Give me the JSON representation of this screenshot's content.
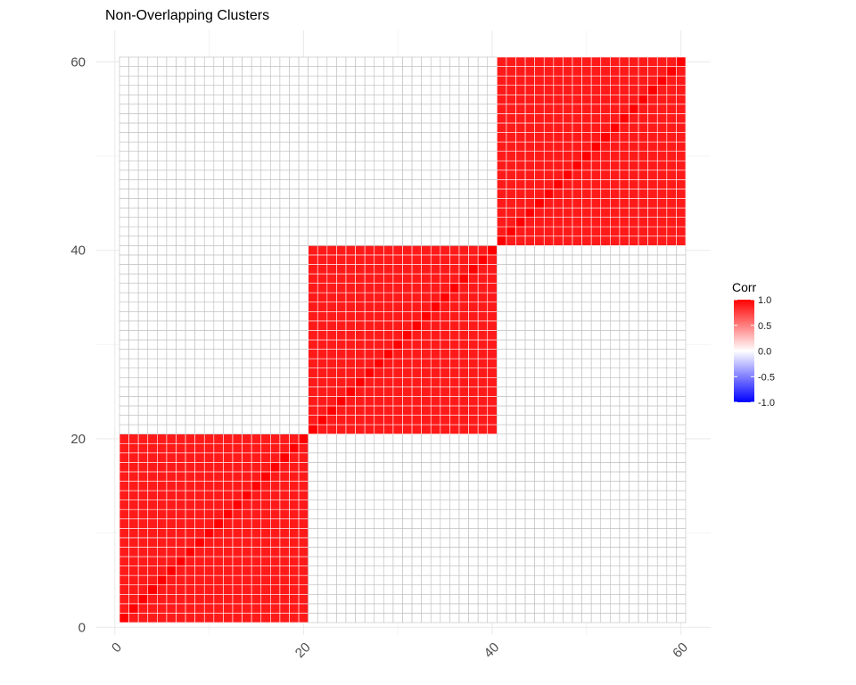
{
  "chart_data": {
    "type": "heatmap",
    "title": "Non-Overlapping Clusters",
    "xlabel": "",
    "ylabel": "",
    "n": 60,
    "xlim": [
      0,
      60
    ],
    "ylim": [
      0,
      60
    ],
    "x_ticks": [
      "0",
      "20",
      "40",
      "60"
    ],
    "y_ticks": [
      "0",
      "20",
      "40",
      "60"
    ],
    "x_tick_values": [
      0,
      20,
      40,
      60
    ],
    "y_tick_values": [
      0,
      20,
      40,
      60
    ],
    "blocks": [
      {
        "from": 1,
        "to": 20,
        "value": 0.9
      },
      {
        "from": 21,
        "to": 40,
        "value": 0.9
      },
      {
        "from": 41,
        "to": 60,
        "value": 0.9
      }
    ],
    "diagonal_value": 1.0,
    "off_block_value": 0.0,
    "legend": {
      "title": "Corr",
      "labels": [
        "1.0",
        "0.5",
        "0.0",
        "-0.5",
        "-1.0"
      ],
      "values": [
        1.0,
        0.5,
        0.0,
        -0.5,
        -1.0
      ],
      "colors": {
        "low": "#0000ff",
        "mid": "#ffffff",
        "high": "#ff0000"
      }
    },
    "grid": true,
    "legend_position": "right"
  }
}
